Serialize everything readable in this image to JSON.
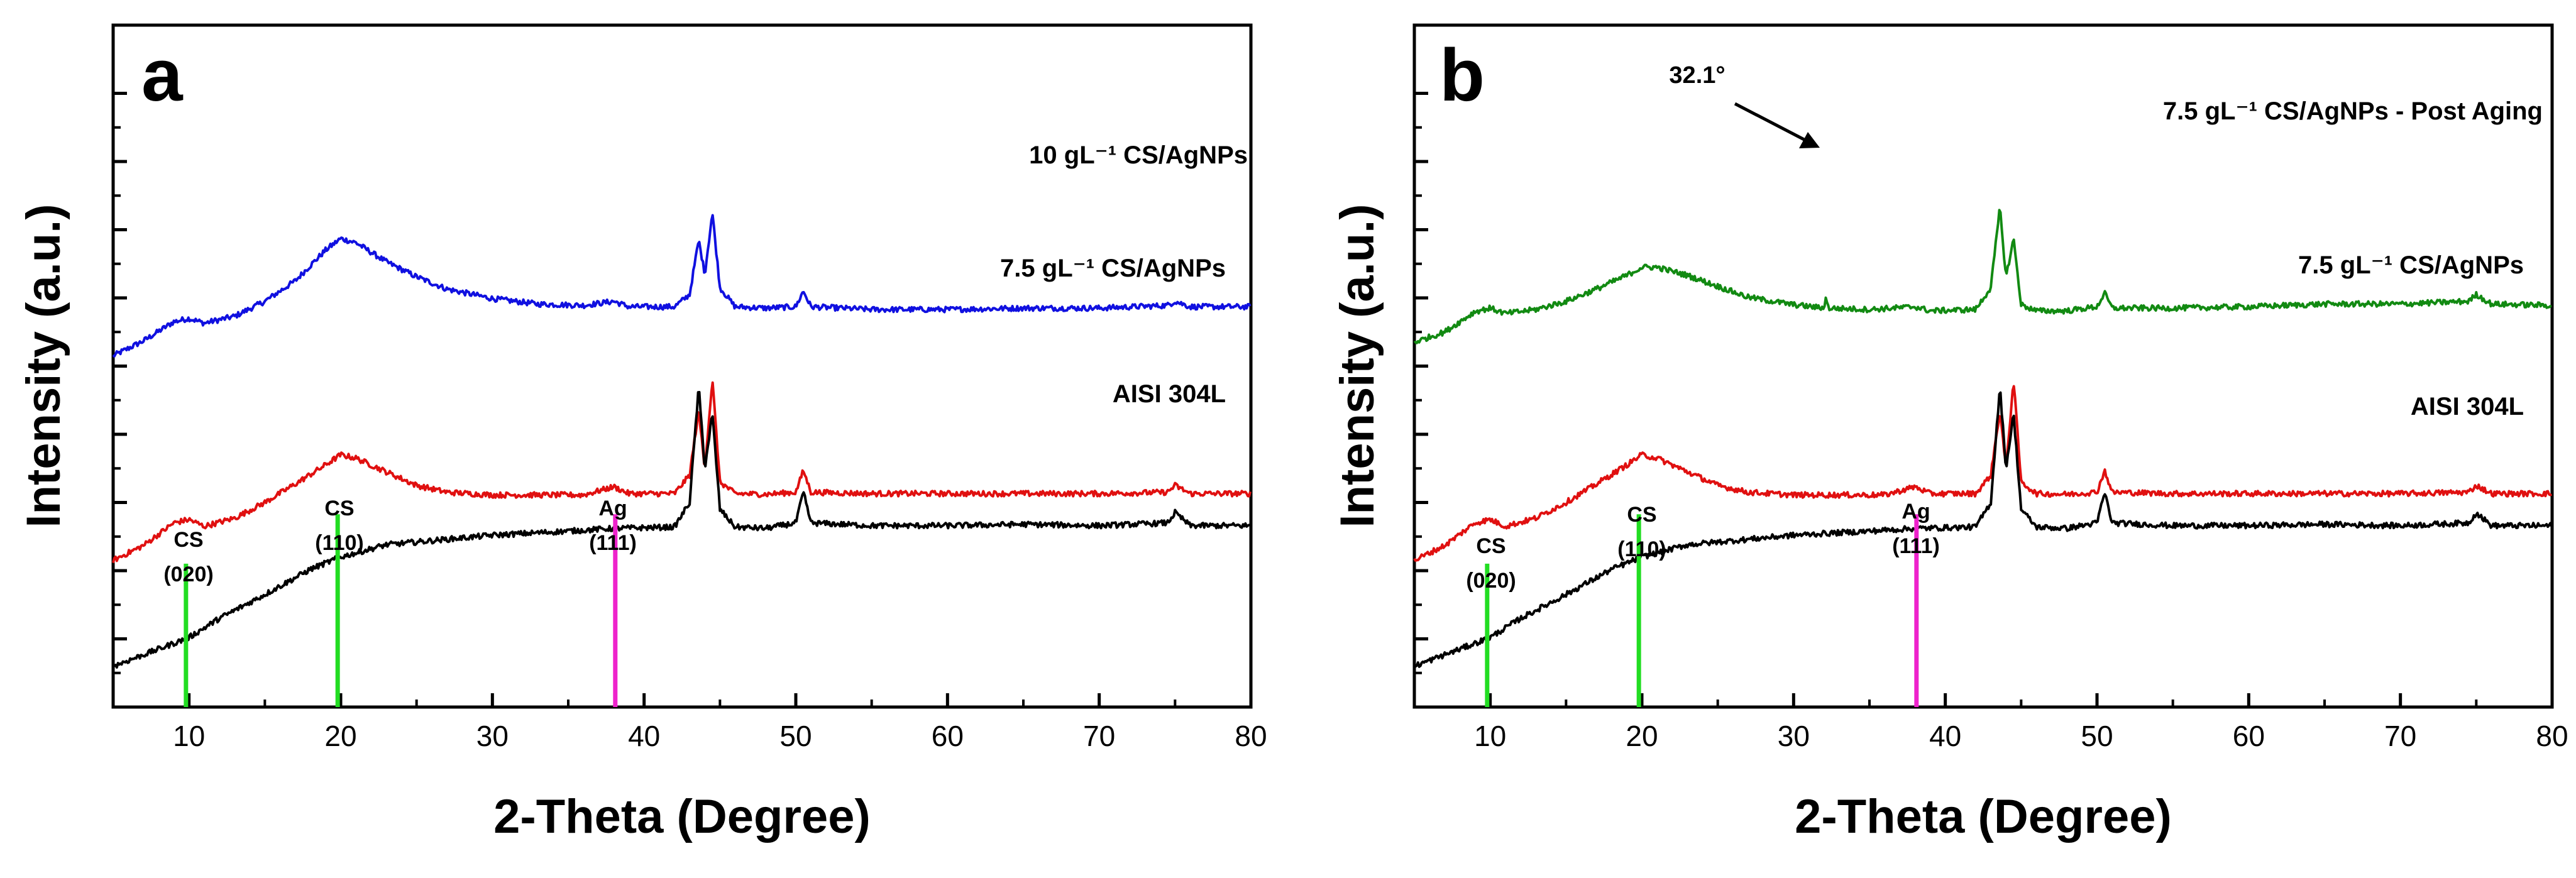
{
  "chart_data": [
    {
      "type": "line",
      "panel_label": "a",
      "xlabel": "2-Theta (Degree)",
      "ylabel": "Intensity (a.u.)",
      "xlim": [
        5,
        80
      ],
      "x_ticks": [
        10,
        20,
        30,
        40,
        50,
        60,
        70,
        80
      ],
      "y_ticks_labeled": false,
      "stack_range": [
        0,
        10
      ],
      "series": [
        {
          "name": "10 gL⁻¹ CS/AgNPs",
          "color": "#1010e0",
          "offset": 7.45,
          "points": [
            [
              5,
              0
            ],
            [
              7,
              0.22
            ],
            [
              9,
              0.5
            ],
            [
              10,
              0.55
            ],
            [
              11,
              0.48
            ],
            [
              13,
              0.58
            ],
            [
              15,
              0.8
            ],
            [
              17,
              1.1
            ],
            [
              19,
              1.55
            ],
            [
              20,
              1.72
            ],
            [
              21,
              1.66
            ],
            [
              23,
              1.38
            ],
            [
              25,
              1.16
            ],
            [
              27,
              0.98
            ],
            [
              30,
              0.84
            ],
            [
              33,
              0.76
            ],
            [
              36,
              0.74
            ],
            [
              38,
              0.8
            ],
            [
              39,
              0.72
            ],
            [
              42,
              0.72
            ],
            [
              43,
              0.9
            ],
            [
              43.6,
              1.7
            ],
            [
              44,
              1.2
            ],
            [
              44.5,
              2.1
            ],
            [
              45,
              1.0
            ],
            [
              46,
              0.72
            ],
            [
              48,
              0.7
            ],
            [
              50,
              0.72
            ],
            [
              50.5,
              0.95
            ],
            [
              51,
              0.72
            ],
            [
              55,
              0.68
            ],
            [
              60,
              0.68
            ],
            [
              65,
              0.7
            ],
            [
              70,
              0.7
            ],
            [
              74.5,
              0.74
            ],
            [
              75,
              0.8
            ],
            [
              76,
              0.72
            ],
            [
              80,
              0.72
            ]
          ]
        },
        {
          "name": "7.5 gL⁻¹ CS/AgNPs",
          "color": "#e01010",
          "offset": 4.45,
          "points": [
            [
              5,
              0
            ],
            [
              7,
              0.22
            ],
            [
              9,
              0.55
            ],
            [
              10,
              0.6
            ],
            [
              11,
              0.5
            ],
            [
              13,
              0.62
            ],
            [
              15,
              0.85
            ],
            [
              17,
              1.12
            ],
            [
              19,
              1.4
            ],
            [
              20,
              1.55
            ],
            [
              21,
              1.5
            ],
            [
              23,
              1.3
            ],
            [
              25,
              1.1
            ],
            [
              27,
              1.0
            ],
            [
              30,
              0.96
            ],
            [
              33,
              0.96
            ],
            [
              36,
              0.96
            ],
            [
              38,
              1.08
            ],
            [
              39,
              0.98
            ],
            [
              42,
              0.98
            ],
            [
              43,
              1.25
            ],
            [
              43.6,
              2.2
            ],
            [
              44,
              1.35
            ],
            [
              44.5,
              2.65
            ],
            [
              45,
              1.15
            ],
            [
              46,
              0.98
            ],
            [
              48,
              0.97
            ],
            [
              50,
              1.0
            ],
            [
              50.5,
              1.32
            ],
            [
              51,
              1.0
            ],
            [
              55,
              0.98
            ],
            [
              60,
              0.98
            ],
            [
              65,
              0.98
            ],
            [
              70,
              0.98
            ],
            [
              74.5,
              1.0
            ],
            [
              75,
              1.1
            ],
            [
              76,
              0.98
            ],
            [
              80,
              0.98
            ]
          ]
        },
        {
          "name": "AISI 304L",
          "color": "#000000",
          "offset": 2.9,
          "points": [
            [
              5,
              0
            ],
            [
              8,
              0.25
            ],
            [
              10,
              0.42
            ],
            [
              12,
              0.7
            ],
            [
              15,
              1.05
            ],
            [
              18,
              1.42
            ],
            [
              20,
              1.6
            ],
            [
              23,
              1.78
            ],
            [
              26,
              1.84
            ],
            [
              30,
              1.92
            ],
            [
              35,
              1.98
            ],
            [
              38,
              2.02
            ],
            [
              42,
              2.04
            ],
            [
              43,
              2.4
            ],
            [
              43.6,
              4.1
            ],
            [
              44,
              2.9
            ],
            [
              44.5,
              3.7
            ],
            [
              45,
              2.3
            ],
            [
              46,
              2.04
            ],
            [
              48,
              2.02
            ],
            [
              50,
              2.1
            ],
            [
              50.5,
              2.55
            ],
            [
              51,
              2.1
            ],
            [
              55,
              2.06
            ],
            [
              60,
              2.06
            ],
            [
              65,
              2.08
            ],
            [
              70,
              2.06
            ],
            [
              74.5,
              2.1
            ],
            [
              75,
              2.25
            ],
            [
              76,
              2.06
            ],
            [
              80,
              2.06
            ]
          ]
        }
      ],
      "reference_lines": [
        {
          "label_top": "CS",
          "label_bottom": "(020)",
          "x": 9.8,
          "height": 1.45,
          "color": "#22dd22"
        },
        {
          "label_top": "CS",
          "label_bottom": "(110)",
          "x": 19.8,
          "height": 1.95,
          "color": "#22dd22"
        },
        {
          "label_top": "Ag",
          "label_bottom": "(111)",
          "x": 38.1,
          "height": 1.95,
          "color": "#ee22cc"
        }
      ]
    },
    {
      "type": "line",
      "panel_label": "b",
      "xlabel": "2-Theta (Degree)",
      "ylabel": "Intensity (a.u.)",
      "xlim": [
        5,
        80
      ],
      "x_ticks": [
        10,
        20,
        30,
        40,
        50,
        60,
        70,
        80
      ],
      "y_ticks_labeled": false,
      "stack_range": [
        0,
        10
      ],
      "series": [
        {
          "name": "7.5 gL⁻¹ CS/AgNPs - Post Aging",
          "color": "#128a12",
          "offset": 7.65,
          "points": [
            [
              5,
              0
            ],
            [
              7,
              0.15
            ],
            [
              9,
              0.45
            ],
            [
              10,
              0.5
            ],
            [
              11,
              0.42
            ],
            [
              13,
              0.48
            ],
            [
              15,
              0.6
            ],
            [
              17,
              0.78
            ],
            [
              19,
              0.98
            ],
            [
              20,
              1.1
            ],
            [
              21,
              1.1
            ],
            [
              23,
              0.98
            ],
            [
              25,
              0.82
            ],
            [
              27,
              0.66
            ],
            [
              30,
              0.55
            ],
            [
              32,
              0.5
            ],
            [
              32.1,
              0.66
            ],
            [
              32.3,
              0.5
            ],
            [
              35,
              0.48
            ],
            [
              38,
              0.52
            ],
            [
              39,
              0.46
            ],
            [
              42,
              0.48
            ],
            [
              43,
              0.8
            ],
            [
              43.6,
              1.98
            ],
            [
              44,
              0.95
            ],
            [
              44.5,
              1.52
            ],
            [
              45,
              0.55
            ],
            [
              46,
              0.46
            ],
            [
              48,
              0.46
            ],
            [
              50,
              0.52
            ],
            [
              50.5,
              0.72
            ],
            [
              51,
              0.5
            ],
            [
              55,
              0.5
            ],
            [
              60,
              0.52
            ],
            [
              65,
              0.56
            ],
            [
              70,
              0.56
            ],
            [
              74.5,
              0.6
            ],
            [
              75,
              0.7
            ],
            [
              76,
              0.56
            ],
            [
              80,
              0.54
            ]
          ]
        },
        {
          "name": "7.5 gL⁻¹ CS/AgNPs",
          "color": "#e01010",
          "offset": 4.45,
          "points": [
            [
              5,
              0
            ],
            [
              7,
              0.22
            ],
            [
              9,
              0.55
            ],
            [
              10,
              0.6
            ],
            [
              11,
              0.5
            ],
            [
              13,
              0.62
            ],
            [
              15,
              0.85
            ],
            [
              17,
              1.12
            ],
            [
              19,
              1.4
            ],
            [
              20,
              1.55
            ],
            [
              21,
              1.5
            ],
            [
              23,
              1.3
            ],
            [
              25,
              1.1
            ],
            [
              27,
              1.0
            ],
            [
              30,
              0.96
            ],
            [
              33,
              0.96
            ],
            [
              36,
              0.96
            ],
            [
              38,
              1.08
            ],
            [
              39,
              0.98
            ],
            [
              42,
              0.98
            ],
            [
              43,
              1.25
            ],
            [
              43.6,
              2.2
            ],
            [
              44,
              1.35
            ],
            [
              44.5,
              2.65
            ],
            [
              45,
              1.15
            ],
            [
              46,
              0.98
            ],
            [
              48,
              0.97
            ],
            [
              50,
              1.0
            ],
            [
              50.5,
              1.32
            ],
            [
              51,
              1.0
            ],
            [
              55,
              0.98
            ],
            [
              60,
              0.98
            ],
            [
              65,
              0.98
            ],
            [
              70,
              0.98
            ],
            [
              74.5,
              1.0
            ],
            [
              75,
              1.1
            ],
            [
              76,
              0.98
            ],
            [
              80,
              0.98
            ]
          ]
        },
        {
          "name": "AISI 304L",
          "color": "#000000",
          "offset": 2.9,
          "points": [
            [
              5,
              0
            ],
            [
              8,
              0.25
            ],
            [
              10,
              0.42
            ],
            [
              12,
              0.7
            ],
            [
              15,
              1.05
            ],
            [
              18,
              1.42
            ],
            [
              20,
              1.6
            ],
            [
              23,
              1.78
            ],
            [
              26,
              1.84
            ],
            [
              30,
              1.92
            ],
            [
              35,
              1.98
            ],
            [
              38,
              2.02
            ],
            [
              42,
              2.04
            ],
            [
              43,
              2.4
            ],
            [
              43.6,
              4.1
            ],
            [
              44,
              2.9
            ],
            [
              44.5,
              3.7
            ],
            [
              45,
              2.3
            ],
            [
              46,
              2.04
            ],
            [
              48,
              2.02
            ],
            [
              50,
              2.1
            ],
            [
              50.5,
              2.55
            ],
            [
              51,
              2.1
            ],
            [
              55,
              2.06
            ],
            [
              60,
              2.06
            ],
            [
              65,
              2.08
            ],
            [
              70,
              2.06
            ],
            [
              74.5,
              2.1
            ],
            [
              75,
              2.25
            ],
            [
              76,
              2.06
            ],
            [
              80,
              2.06
            ]
          ]
        }
      ],
      "reference_lines": [
        {
          "label_top": "CS",
          "label_bottom": "(020)",
          "x": 9.8,
          "height": 1.45,
          "color": "#22dd22"
        },
        {
          "label_top": "CS",
          "label_bottom": "(110)",
          "x": 19.8,
          "height": 1.95,
          "color": "#22dd22"
        },
        {
          "label_top": "Ag",
          "label_bottom": "(111)",
          "x": 38.1,
          "height": 1.95,
          "color": "#ee22cc"
        }
      ],
      "annotations": [
        {
          "text": "32.1°",
          "x": 32.1
        }
      ]
    }
  ]
}
